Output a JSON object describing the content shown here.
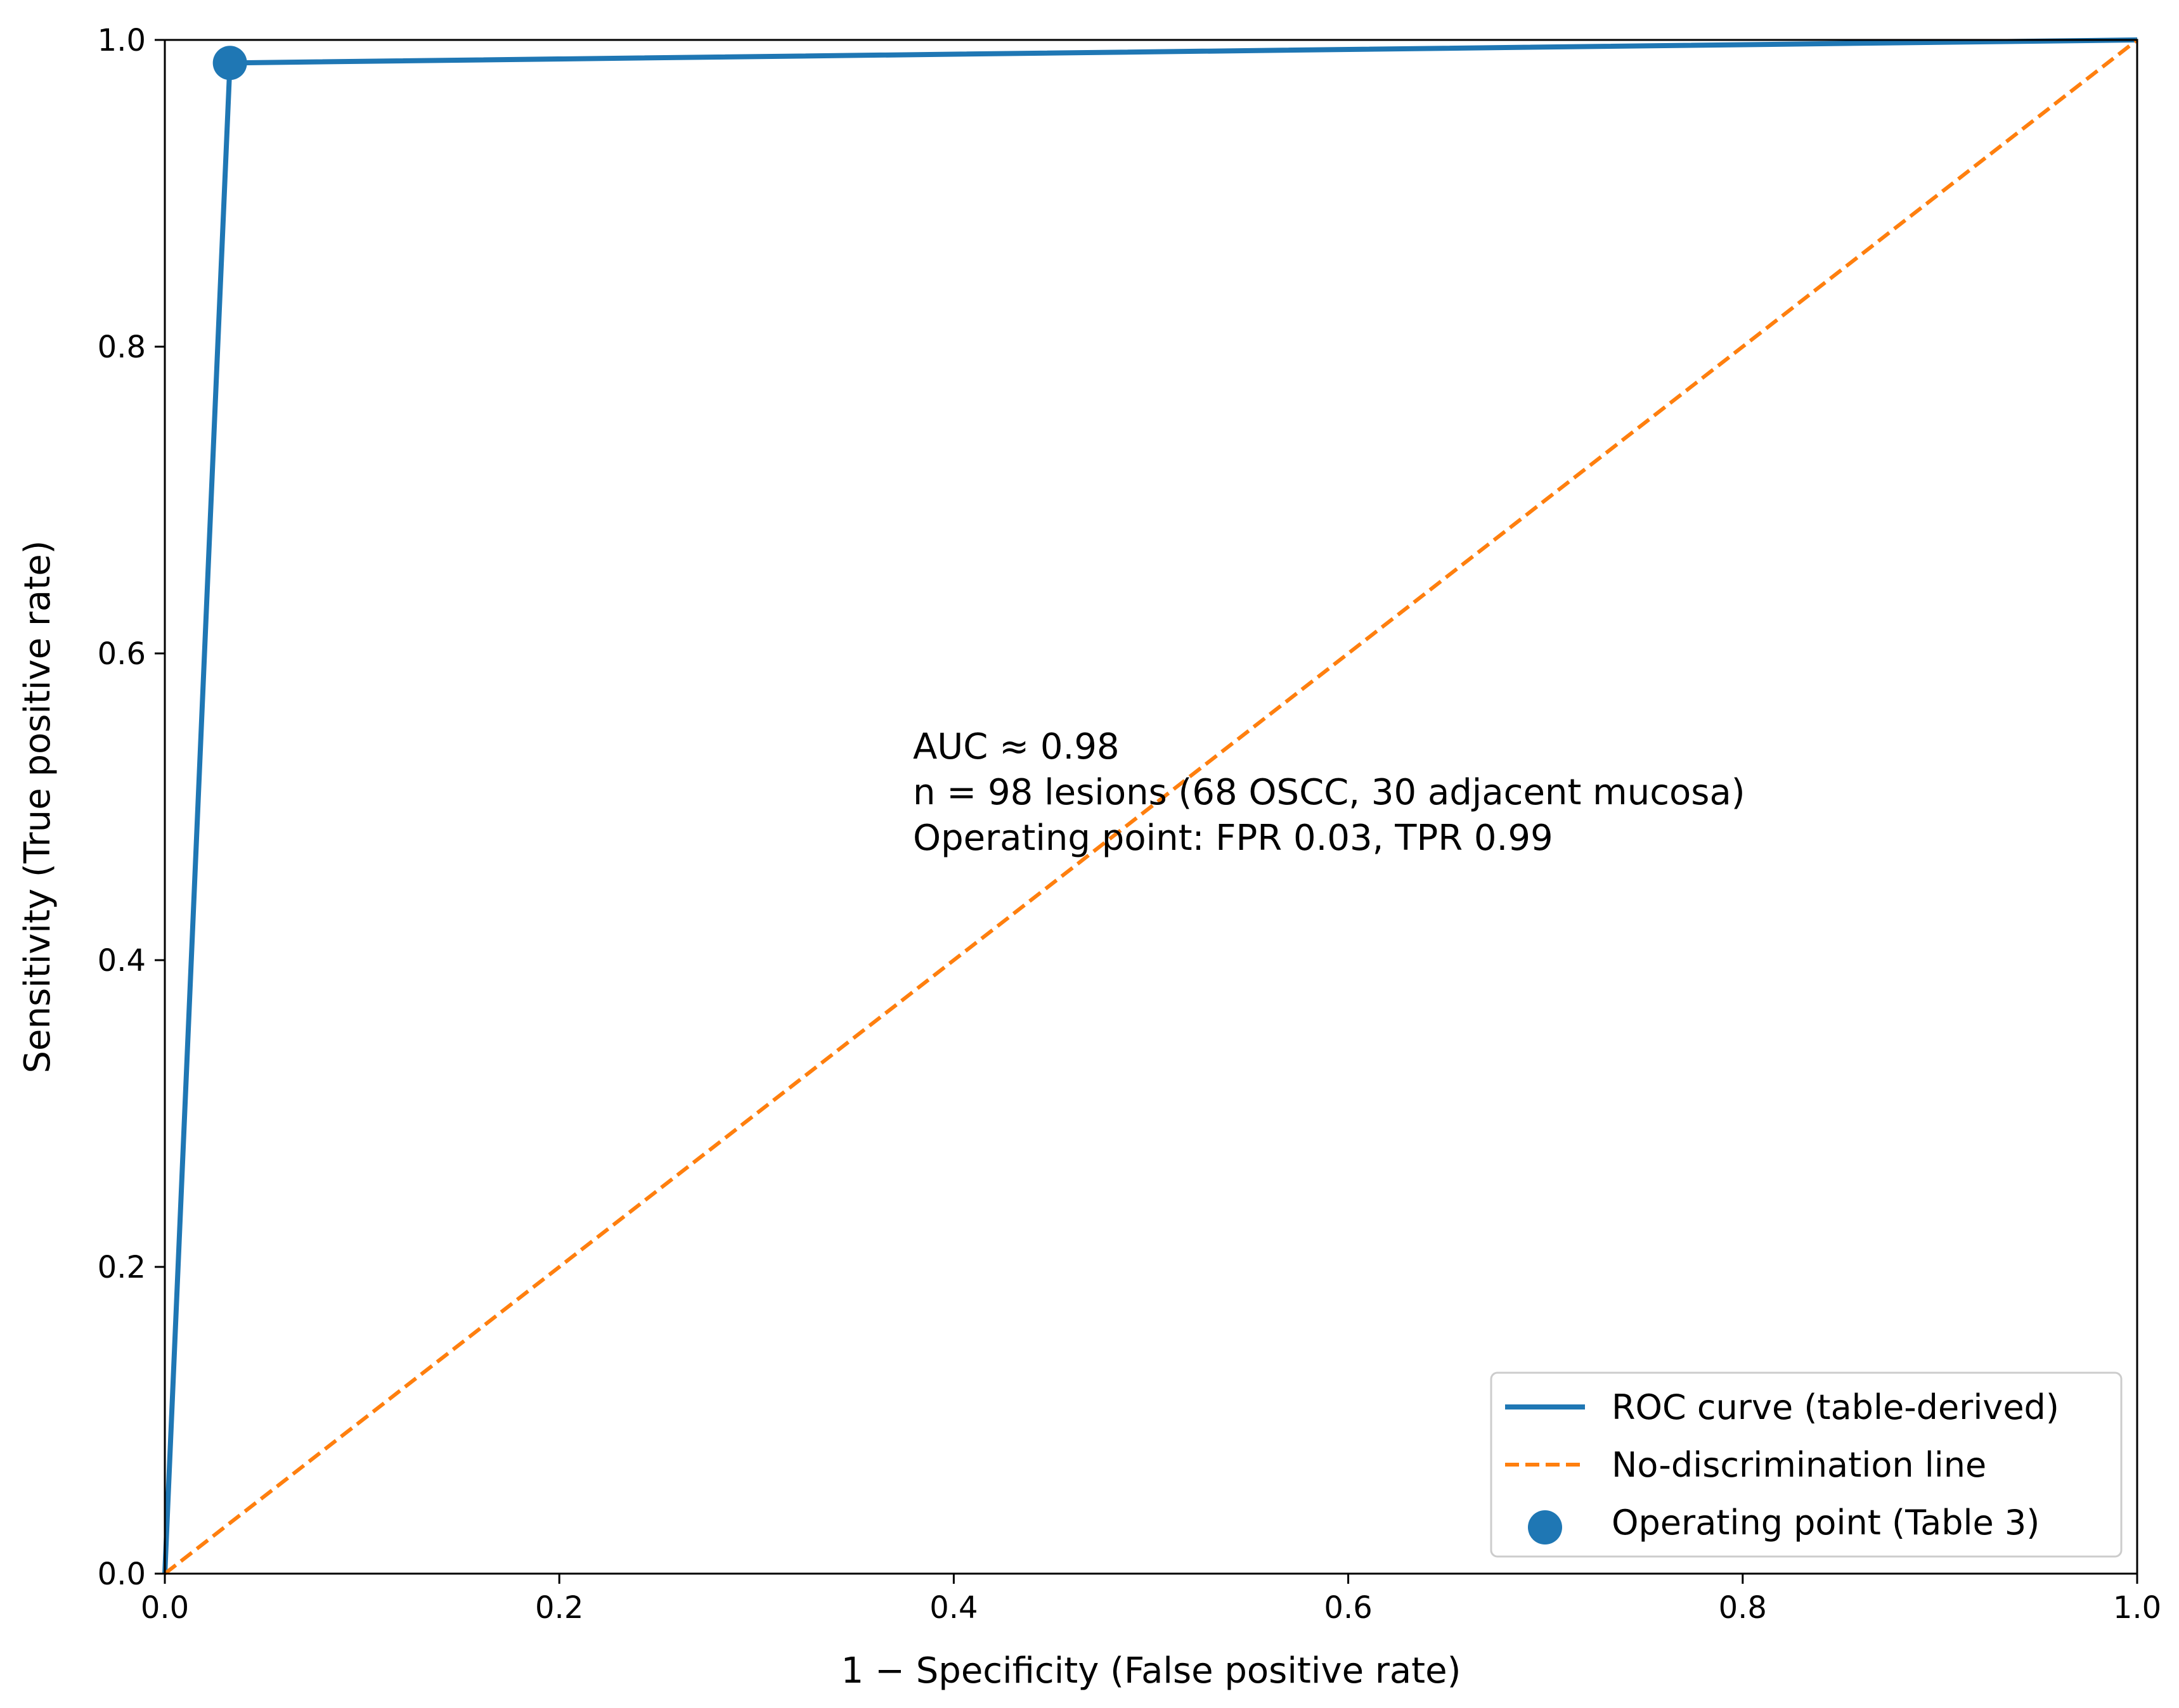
{
  "chart_data": {
    "type": "line",
    "title": "",
    "xlabel": "1 − Specificity (False positive rate)",
    "ylabel": "Sensitivity (True positive rate)",
    "xlim": [
      0.0,
      1.0
    ],
    "ylim": [
      0.0,
      1.0
    ],
    "xticks": [
      "0.0",
      "0.2",
      "0.4",
      "0.6",
      "0.8",
      "1.0"
    ],
    "yticks": [
      "0.0",
      "0.2",
      "0.4",
      "0.6",
      "0.8",
      "1.0"
    ],
    "grid": false,
    "legend_position": "bottom-right",
    "series": [
      {
        "name": "ROC curve (table-derived)",
        "kind": "line",
        "style": "solid",
        "color": "#1f77b4",
        "x": [
          0.0,
          0.033,
          1.0
        ],
        "y": [
          0.0,
          0.985,
          1.0
        ]
      },
      {
        "name": "No-discrimination line",
        "kind": "line",
        "style": "dashed",
        "color": "#ff7f0e",
        "x": [
          0.0,
          1.0
        ],
        "y": [
          0.0,
          1.0
        ]
      },
      {
        "name": "Operating point (Table 3)",
        "kind": "scatter",
        "color": "#1f77b4",
        "x": [
          0.033
        ],
        "y": [
          0.985
        ]
      }
    ],
    "annotations": [
      "AUC ≈ 0.98",
      "n = 98 lesions (68 OSCC, 30 adjacent mucosa)",
      "Operating point: FPR 0.03, TPR 0.99"
    ]
  }
}
